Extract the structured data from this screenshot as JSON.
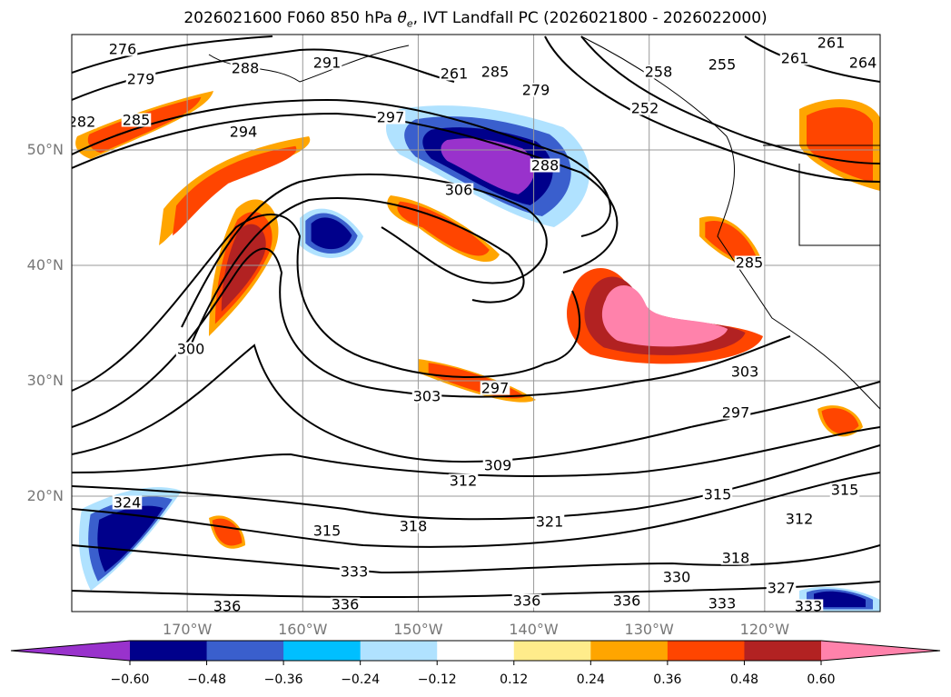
{
  "title": {
    "prefix": "2026021600 F060 850 hPa ",
    "theta": "θ",
    "sub": "e",
    "suffix": ", IVT Landfall PC (2026021800 - 2026022000)"
  },
  "chart_data": {
    "type": "heatmap",
    "description_fields": [
      "850 hPa equivalent potential temperature contours (K)",
      "IVT landfall PC shading"
    ],
    "extent": {
      "lon": [
        -180,
        -110
      ],
      "lat": [
        10,
        60
      ]
    },
    "x_ticks": [
      "170°W",
      "160°W",
      "150°W",
      "140°W",
      "130°W",
      "120°W"
    ],
    "y_ticks": [
      "50°N",
      "40°N",
      "30°N",
      "20°N"
    ],
    "grid": true,
    "contour_labels": [
      "276",
      "279",
      "288",
      "291",
      "261",
      "285",
      "279",
      "258",
      "255",
      "261",
      "261",
      "264",
      "282",
      "285",
      "294",
      "297",
      "288",
      "306",
      "252",
      "285",
      "300",
      "297",
      "303",
      "297",
      "303",
      "309",
      "312",
      "324",
      "315",
      "318",
      "321",
      "315",
      "315",
      "312",
      "333",
      "330",
      "318",
      "327",
      "336",
      "336",
      "336",
      "336",
      "333",
      "333"
    ],
    "colorbar": {
      "ticks": [
        "−0.60",
        "−0.48",
        "−0.36",
        "−0.24",
        "−0.12",
        "0.12",
        "0.24",
        "0.36",
        "0.48",
        "0.60"
      ],
      "colors": [
        "#9932cc",
        "#00008b",
        "#3a5fcd",
        "#00bfff",
        "#b0e2ff",
        "#ffffff",
        "#ffec8b",
        "#ffa500",
        "#ff4500",
        "#b22222",
        "#ff82ab"
      ],
      "extend": "both"
    }
  }
}
